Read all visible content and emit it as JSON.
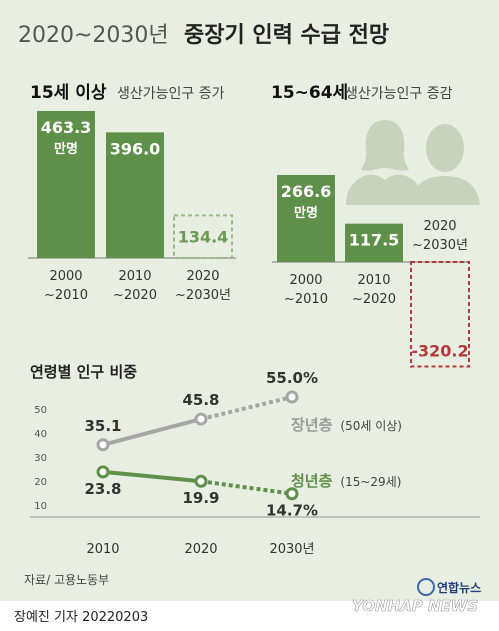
{
  "title": {
    "years": "2020~2030년",
    "main": "중장기 인력 수급 전망"
  },
  "panel_left": {
    "heading_bold": "15세 이상",
    "heading_rest": "생산가능인구 증가"
  },
  "panel_right": {
    "heading_bold": "15~64세",
    "heading_rest": "생산가능인구 증감"
  },
  "unit_label": "만명",
  "line_section_title": "연령별 인구 비중",
  "source": "자료/ 고용노동부",
  "credit": "장예진 기자  20220203",
  "brand": {
    "name_ko": "연합뉴스",
    "name_en": "YONHAP NEWS"
  },
  "icons": [
    "woman-silhouette-icon",
    "man-silhouette-icon"
  ],
  "colors": {
    "bar": "#5e9049",
    "projection_outline": "#9bb88a",
    "projection_text": "#6a9a55",
    "negative": "#b23a3a",
    "older_line": "#a6a6a6",
    "younger_line": "#5e9049",
    "background": "#e9eee2"
  },
  "chart_data": [
    {
      "type": "bar",
      "title": "15세 이상 생산가능인구 증가",
      "categories": [
        [
          "2000",
          "~2010"
        ],
        [
          "2010",
          "~2020"
        ],
        [
          "2020",
          "~2030년"
        ]
      ],
      "values": [
        463.3,
        396.0,
        134.4
      ],
      "labels": [
        "463.3",
        "396.0",
        "134.4"
      ],
      "projected": [
        false,
        false,
        true
      ],
      "unit": "만명"
    },
    {
      "type": "bar",
      "title": "15~64세 생산가능인구 증감",
      "categories": [
        [
          "2000",
          "~2010"
        ],
        [
          "2010",
          "~2020"
        ],
        [
          "2020",
          "~2030년"
        ]
      ],
      "values": [
        266.6,
        117.5,
        -320.2
      ],
      "labels": [
        "266.6",
        "117.5",
        "-320.2"
      ],
      "projected": [
        false,
        false,
        true
      ],
      "unit": "만명"
    },
    {
      "type": "line",
      "title": "연령별 인구 비중",
      "x": [
        "2010",
        "2020",
        "2030년"
      ],
      "ylim": [
        10,
        55
      ],
      "yticks": [
        "10",
        "20",
        "30",
        "40",
        "50"
      ],
      "series": [
        {
          "name": "장년층",
          "note": "(50세 이상)",
          "values": [
            35.1,
            45.8,
            55.0
          ],
          "labels": [
            "35.1",
            "45.8",
            "55.0%"
          ],
          "projected_from_index": 1
        },
        {
          "name": "청년층",
          "note": "(15~29세)",
          "values": [
            23.8,
            19.9,
            14.7
          ],
          "labels": [
            "23.8",
            "19.9",
            "14.7%"
          ],
          "projected_from_index": 1
        }
      ]
    }
  ]
}
